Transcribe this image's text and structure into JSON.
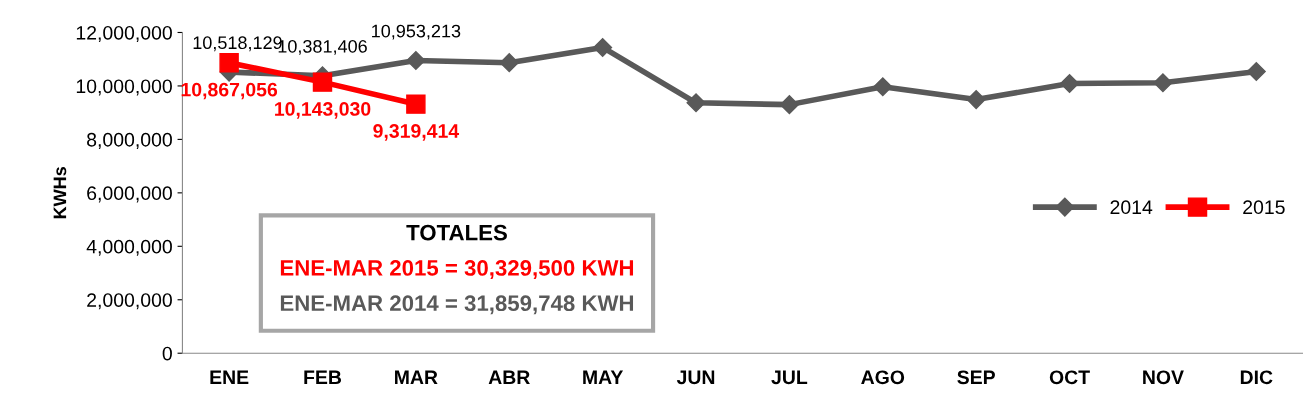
{
  "chart_data": {
    "type": "line",
    "ylabel": "KWHs",
    "categories": [
      "ENE",
      "FEB",
      "MAR",
      "ABR",
      "MAY",
      "JUN",
      "JUL",
      "AGO",
      "SEP",
      "OCT",
      "NOV",
      "DIC"
    ],
    "series": [
      {
        "name": "2014",
        "color": "#595959",
        "marker": "diamond",
        "values": [
          10518129,
          10381406,
          10953213,
          10870000,
          11440000,
          9370000,
          9300000,
          9970000,
          9490000,
          10090000,
          10120000,
          10540000
        ],
        "value_labels": [
          "10,518,129",
          "10,381,406",
          "10,953,213",
          null,
          null,
          null,
          null,
          null,
          null,
          null,
          null,
          null
        ]
      },
      {
        "name": "2015",
        "color": "#ff0000",
        "marker": "square",
        "values": [
          10867056,
          10143030,
          9319414,
          null,
          null,
          null,
          null,
          null,
          null,
          null,
          null,
          null
        ],
        "value_labels": [
          "10,867,056",
          "10,143,030",
          "9,319,414",
          null,
          null,
          null,
          null,
          null,
          null,
          null,
          null,
          null
        ]
      }
    ],
    "ylim": [
      0,
      12000000
    ],
    "yticks": [
      {
        "value": 0,
        "label": "0"
      },
      {
        "value": 2000000,
        "label": "2,000,000"
      },
      {
        "value": 4000000,
        "label": "4,000,000"
      },
      {
        "value": 6000000,
        "label": "6,000,000"
      },
      {
        "value": 8000000,
        "label": "8,000,000"
      },
      {
        "value": 10000000,
        "label": "10,000,000"
      },
      {
        "value": 12000000,
        "label": "12,000,000"
      }
    ],
    "annotations": [
      "TOTALES",
      "ENE-MAR 2015 = 30,329,500 KWH",
      "ENE-MAR 2014 = 31,859,748 KWH"
    ],
    "legend": "center right",
    "grid": false,
    "line_style": "solid"
  }
}
